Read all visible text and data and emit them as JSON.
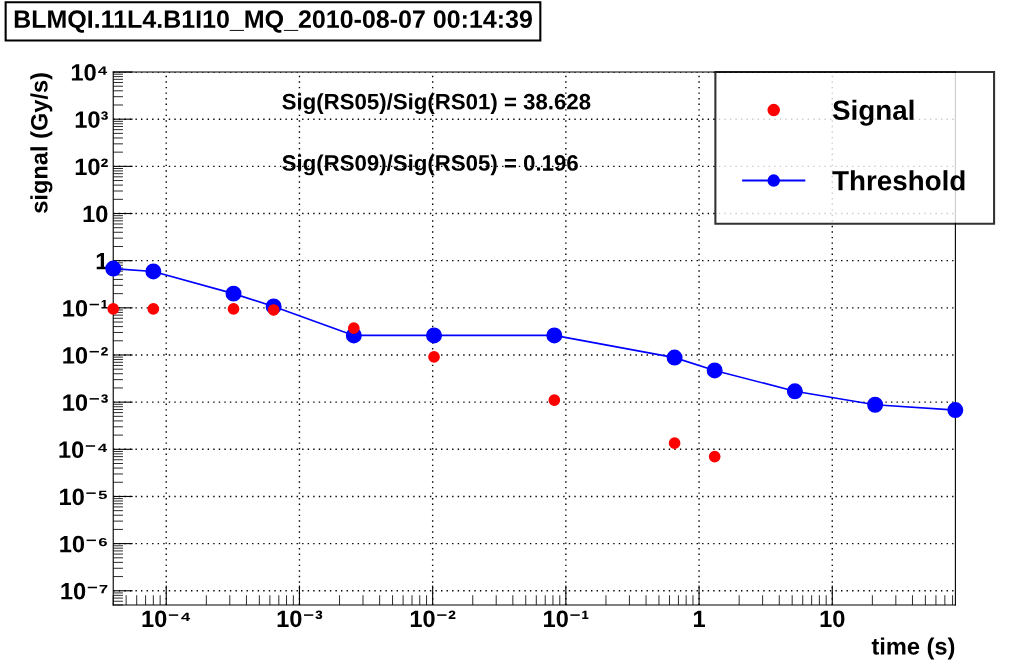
{
  "chart_data": {
    "type": "scatter",
    "title": "BLMQI.11L4.B1I10_MQ_2010-08-07 00:14:39",
    "xlabel": "time (s)",
    "ylabel": "signal (Gy/s)",
    "annotations": [
      "Sig(RS05)/Sig(RS01) = 38.628",
      "Sig(RS09)/Sig(RS05) = 0.196"
    ],
    "x": [
      4e-05,
      8e-05,
      0.00032,
      0.00064,
      0.00256,
      0.01024,
      0.08192,
      0.655,
      1.31,
      5.24,
      20.97,
      83.89
    ],
    "series": [
      {
        "name": "Signal",
        "color": "#ff0000",
        "values": [
          0.095,
          0.095,
          0.095,
          0.09,
          0.037,
          0.0091,
          0.0011,
          0.000135,
          7e-05,
          null,
          null,
          null
        ]
      },
      {
        "name": "Threshold",
        "type": "line",
        "color": "#0000ff",
        "values": [
          0.68,
          0.59,
          0.2,
          0.107,
          0.026,
          0.026,
          0.026,
          0.0088,
          0.0047,
          0.0017,
          0.00088,
          0.00068
        ]
      }
    ],
    "log": "xy",
    "xlim": [
      4e-05,
      84
    ],
    "ylim": [
      5e-08,
      10000
    ],
    "xticks": [
      {
        "value": 0.0001,
        "label": "10⁻⁴"
      },
      {
        "value": 0.001,
        "label": "10⁻³"
      },
      {
        "value": 0.01,
        "label": "10⁻²"
      },
      {
        "value": 0.1,
        "label": "10⁻¹"
      },
      1,
      10
    ],
    "yticks": [
      {
        "value": 1e-07,
        "label": "10⁻⁷"
      },
      {
        "value": 1e-06,
        "label": "10⁻⁶"
      },
      {
        "value": 1e-05,
        "label": "10⁻⁵"
      },
      {
        "value": 0.0001,
        "label": "10⁻⁴"
      },
      {
        "value": 0.001,
        "label": "10⁻³"
      },
      {
        "value": 0.01,
        "label": "10⁻²"
      },
      {
        "value": 0.1,
        "label": "10⁻¹"
      },
      1,
      10,
      {
        "value": 100,
        "label": "10²"
      },
      {
        "value": 1000,
        "label": "10³"
      },
      {
        "value": 10000,
        "label": "10⁴"
      }
    ],
    "grid": true,
    "legend": "top right",
    "marker": "circle",
    "line_style": "solid"
  }
}
